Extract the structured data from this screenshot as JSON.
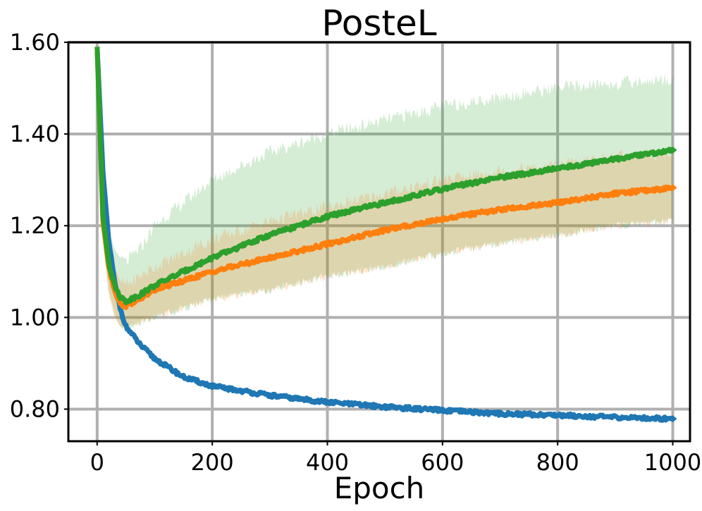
{
  "chart_data": {
    "type": "line",
    "title": "PosteL",
    "xlabel": "Epoch",
    "ylabel": "",
    "xlim": [
      -50,
      1030
    ],
    "ylim": [
      0.73,
      1.6
    ],
    "xticks": [
      0,
      200,
      400,
      600,
      800,
      1000
    ],
    "xtick_labels": [
      "0",
      "200",
      "400",
      "600",
      "800",
      "1000"
    ],
    "yticks": [
      0.8,
      1.0,
      1.2,
      1.4,
      1.6
    ],
    "ytick_labels": [
      "0.80",
      "1.00",
      "1.20",
      "1.40",
      "1.60"
    ],
    "grid": true,
    "legend": "none",
    "series": [
      {
        "color": "#1f77b4",
        "x": [
          0,
          10,
          20,
          30,
          40,
          50,
          75,
          100,
          150,
          200,
          300,
          400,
          500,
          600,
          700,
          800,
          900,
          1000
        ],
        "y": [
          1.59,
          1.32,
          1.17,
          1.08,
          1.02,
          0.98,
          0.94,
          0.91,
          0.87,
          0.85,
          0.83,
          0.815,
          0.805,
          0.797,
          0.79,
          0.787,
          0.782,
          0.779
        ]
      },
      {
        "color": "#ff7f0e",
        "x": [
          0,
          10,
          20,
          30,
          40,
          50,
          75,
          100,
          150,
          200,
          300,
          400,
          500,
          600,
          700,
          800,
          900,
          1000
        ],
        "y": [
          1.59,
          1.21,
          1.11,
          1.06,
          1.03,
          1.025,
          1.04,
          1.06,
          1.08,
          1.1,
          1.13,
          1.16,
          1.19,
          1.215,
          1.235,
          1.25,
          1.27,
          1.283
        ],
        "band_lower": [
          1.59,
          1.17,
          1.05,
          1.0,
          0.98,
          0.98,
          0.99,
          1.0,
          1.02,
          1.04,
          1.06,
          1.09,
          1.11,
          1.14,
          1.16,
          1.18,
          1.2,
          1.21
        ],
        "band_upper": [
          1.59,
          1.25,
          1.15,
          1.11,
          1.08,
          1.07,
          1.09,
          1.11,
          1.14,
          1.17,
          1.21,
          1.24,
          1.27,
          1.3,
          1.32,
          1.33,
          1.35,
          1.36
        ]
      },
      {
        "color": "#2ca02c",
        "x": [
          0,
          10,
          20,
          30,
          40,
          50,
          75,
          100,
          150,
          200,
          300,
          400,
          500,
          600,
          700,
          800,
          900,
          1000
        ],
        "y": [
          1.59,
          1.22,
          1.12,
          1.07,
          1.045,
          1.035,
          1.05,
          1.07,
          1.1,
          1.13,
          1.18,
          1.22,
          1.25,
          1.28,
          1.305,
          1.325,
          1.345,
          1.365
        ],
        "band_lower": [
          1.59,
          1.17,
          1.06,
          1.01,
          0.98,
          0.98,
          0.99,
          1.0,
          1.02,
          1.04,
          1.06,
          1.09,
          1.11,
          1.14,
          1.16,
          1.18,
          1.2,
          1.21
        ],
        "band_upper": [
          1.59,
          1.27,
          1.19,
          1.15,
          1.13,
          1.12,
          1.15,
          1.2,
          1.25,
          1.3,
          1.36,
          1.4,
          1.43,
          1.46,
          1.48,
          1.5,
          1.51,
          1.52
        ]
      }
    ]
  }
}
